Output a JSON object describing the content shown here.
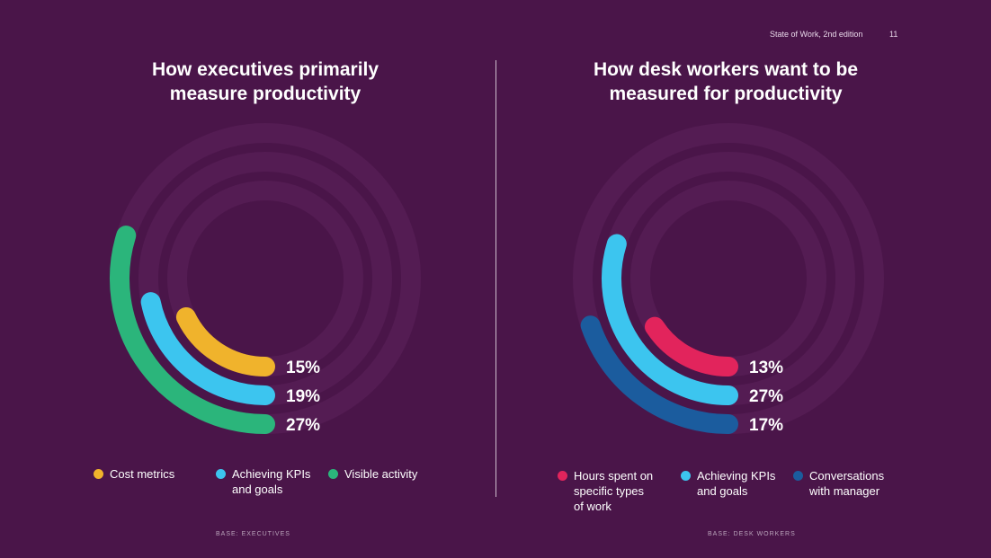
{
  "header": {
    "doc_title": "State of Work, 2nd edition",
    "page_number": "11"
  },
  "chart_data": [
    {
      "type": "radial-bar",
      "title": "How executives primarily measure productivity",
      "categories": [
        "Cost metrics",
        "Achieving KPIs and goals",
        "Visible activity"
      ],
      "values": [
        15,
        19,
        27
      ],
      "labels": [
        "15%",
        "19%",
        "27%"
      ],
      "colors": [
        "#f0b32c",
        "#3cc5ef",
        "#2bb57b"
      ],
      "base": "BASE: EXECUTIVES"
    },
    {
      "type": "radial-bar",
      "title": "How desk workers want to be measured for productivity",
      "categories": [
        "Hours spent on specific types of work",
        "Achieving KPIs and goals",
        "Conversations with manager"
      ],
      "values": [
        13,
        27,
        17
      ],
      "labels": [
        "13%",
        "27%",
        "17%"
      ],
      "colors": [
        "#e2245c",
        "#3cc5ef",
        "#1b5c9e"
      ],
      "base": "BASE: DESK WORKERS"
    }
  ],
  "legend_lines": [
    [
      [
        "Cost metrics"
      ],
      [
        "Achieving KPIs",
        "and goals"
      ],
      [
        "Visible activity"
      ]
    ],
    [
      [
        "Hours spent on",
        "specific types",
        "of work"
      ],
      [
        "Achieving KPIs",
        "and goals"
      ],
      [
        "Conversations",
        "with manager"
      ]
    ]
  ],
  "titles": [
    [
      "How executives primarily",
      "measure productivity"
    ],
    [
      "How desk workers want to be",
      "measured for productivity"
    ]
  ]
}
